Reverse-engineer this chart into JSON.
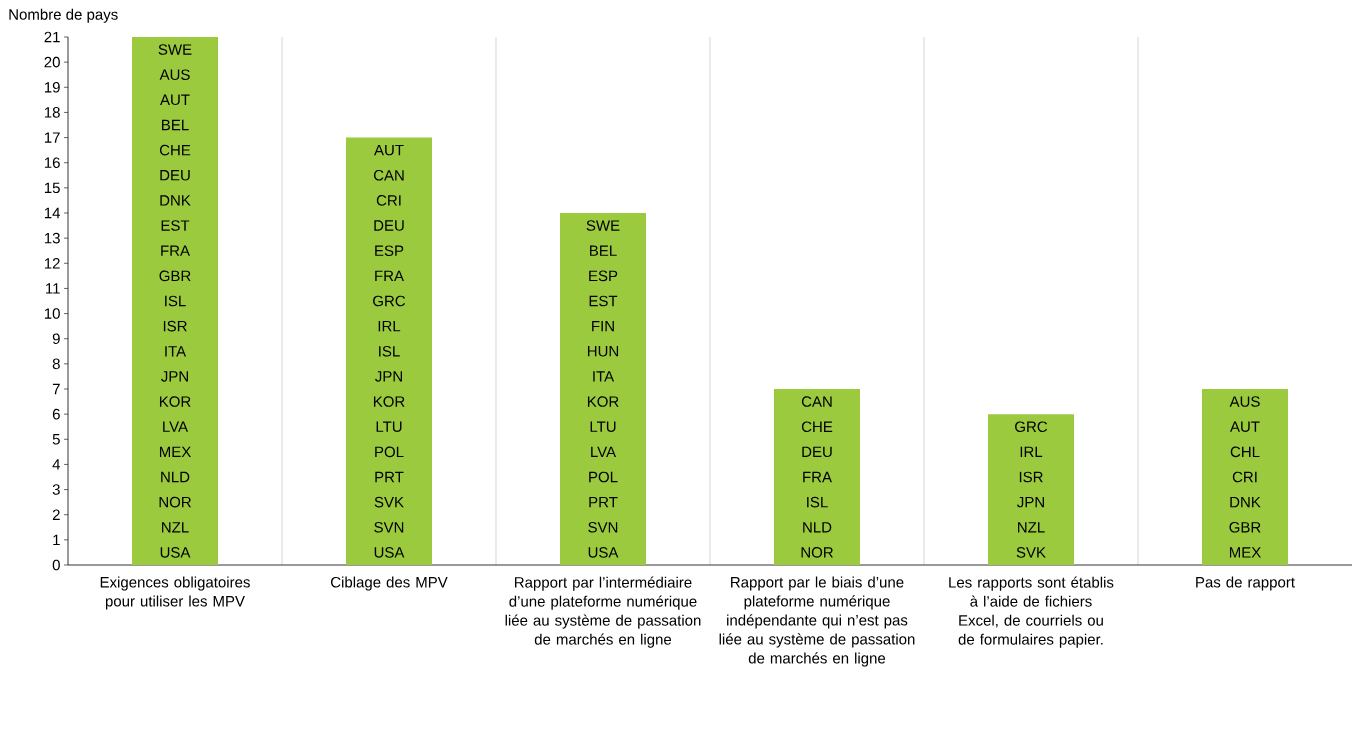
{
  "chart_data": {
    "type": "bar",
    "ylabel": "Nombre de pays",
    "categories": [
      "Exigences obligatoires pour utiliser les MPV",
      "Ciblage des MPV",
      "Rapport par l’intermédiaire d’une plateforme numérique liée au système de passation de marchés en ligne",
      "Rapport par le biais d’une plateforme numérique indépendante qui n’est pas liée au système de passation de marchés en ligne",
      "Les rapports sont établis à l’aide de fichiers Excel, de courriels ou de formulaires papier.",
      "Pas de rapport"
    ],
    "values": [
      21,
      17,
      14,
      7,
      6,
      7
    ],
    "color": "#9bca3e",
    "ylim": [
      0,
      21
    ],
    "yticks": [
      0,
      1,
      2,
      3,
      4,
      5,
      6,
      7,
      8,
      9,
      10,
      11,
      12,
      13,
      14,
      15,
      16,
      17,
      18,
      19,
      20,
      21
    ],
    "grid": "x",
    "annotations": [
      "SWE",
      "AUS",
      "AUT",
      "BEL",
      "CHE",
      "DEU",
      "DNK",
      "EST",
      "FRA",
      "GBR",
      "ISL",
      "ISR",
      "ITA",
      "JPN",
      "KOR",
      "LVA",
      "MEX",
      "NLD",
      "NOR",
      "NZL",
      "USA",
      "AUT",
      "CAN",
      "CRI",
      "DEU",
      "ESP",
      "FRA",
      "GRC",
      "IRL",
      "ISL",
      "JPN",
      "KOR",
      "LTU",
      "POL",
      "PRT",
      "SVK",
      "SVN",
      "USA",
      "SWE",
      "BEL",
      "ESP",
      "EST",
      "FIN",
      "HUN",
      "ITA",
      "KOR",
      "LTU",
      "LVA",
      "POL",
      "PRT",
      "SVN",
      "USA",
      "CAN",
      "CHE",
      "DEU",
      "FRA",
      "ISL",
      "NLD",
      "NOR",
      "GRC",
      "IRL",
      "ISR",
      "JPN",
      "NZL",
      "SVK",
      "AUS",
      "AUT",
      "CHL",
      "CRI",
      "DNK",
      "GBR",
      "MEX"
    ]
  }
}
